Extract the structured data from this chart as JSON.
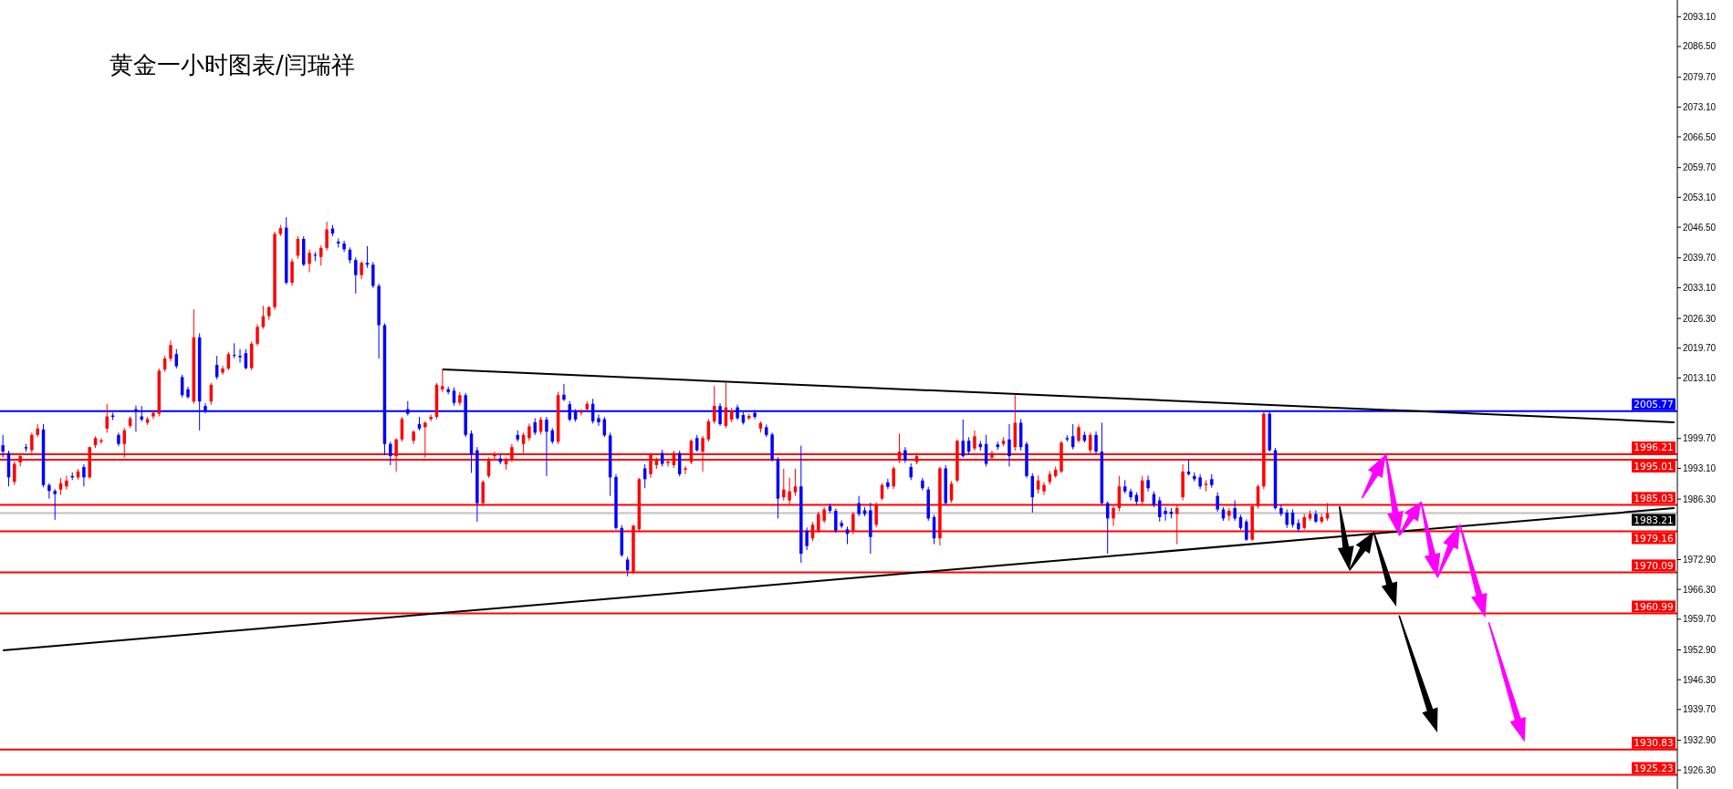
{
  "chart_data": {
    "type": "candlestick",
    "title": "黄金一小时图表/闫瑞祥",
    "categories": [
      null,
      null,
      null,
      null,
      null,
      null,
      null,
      null,
      null,
      null,
      null,
      null,
      null,
      null,
      null,
      null,
      null,
      null,
      null,
      null,
      null,
      null,
      null,
      null,
      null,
      null,
      null,
      null,
      null,
      null,
      null,
      null,
      null,
      null,
      null,
      null,
      null,
      null,
      null,
      null,
      null,
      null,
      null,
      null,
      null,
      null,
      null,
      null,
      null,
      null,
      null,
      null,
      null,
      null,
      null,
      null,
      null,
      null,
      null,
      null,
      null,
      null,
      null,
      null,
      null,
      null,
      null,
      null,
      null,
      null,
      null,
      null,
      null,
      null,
      null,
      null,
      null,
      null,
      null,
      null,
      null,
      null,
      null,
      null,
      null,
      null,
      null,
      null,
      null,
      null,
      null,
      null,
      null,
      null,
      null,
      null,
      null,
      null,
      null,
      null,
      null,
      null,
      null,
      null,
      null,
      null,
      null,
      null,
      null,
      null,
      null,
      null,
      null,
      null,
      null,
      null,
      null,
      null,
      null,
      null,
      null,
      null,
      null,
      null,
      null,
      null,
      null,
      null,
      null,
      null,
      null,
      null,
      null,
      null,
      null,
      null,
      null,
      null,
      null,
      null,
      null,
      null,
      null,
      null,
      null,
      null,
      null,
      null,
      null,
      null,
      null,
      null,
      null,
      null,
      null,
      null,
      null,
      null,
      null,
      null,
      null,
      null,
      null,
      null,
      null,
      null,
      null,
      null,
      null,
      null,
      null,
      null,
      null,
      null,
      null,
      null,
      null,
      null,
      null,
      null,
      null,
      null,
      null,
      null,
      null,
      null,
      null,
      null,
      null,
      null,
      null,
      null,
      null,
      null,
      null,
      null,
      null,
      null,
      null,
      null,
      null,
      null,
      null,
      null,
      null,
      null,
      null,
      null,
      null,
      null,
      null,
      null,
      null,
      null,
      null,
      null,
      null,
      null,
      null,
      null,
      null,
      null,
      null,
      null,
      null,
      null,
      null,
      null,
      null,
      null,
      null,
      null,
      null,
      null,
      null,
      null,
      null,
      null,
      null,
      null,
      null,
      null,
      null,
      null,
      null,
      null,
      null,
      null,
      null,
      null,
      null,
      null,
      null,
      null,
      null,
      null,
      null,
      null,
      null,
      null,
      null,
      null,
      null,
      null,
      null,
      null,
      null,
      null,
      null,
      null,
      null,
      null,
      null,
      null,
      null,
      null,
      null,
      null,
      null,
      null,
      null,
      null,
      null,
      null,
      null,
      null,
      null,
      null,
      null,
      null
    ],
    "ohlc": [
      [
        1998.2,
        2000.5,
        1995.5,
        1996.8
      ],
      [
        1996.5,
        1997.0,
        1989.1,
        1991.1
      ],
      [
        1990.1,
        1994.6,
        1989.4,
        1994.1
      ],
      [
        1994.4,
        1996.0,
        1993.5,
        1995.8
      ],
      [
        1997.8,
        1998.5,
        1996.8,
        1997.5
      ],
      [
        1997.1,
        2001.0,
        1996.5,
        2000.5
      ],
      [
        2000.5,
        2002.9,
        2000.0,
        2001.9
      ],
      [
        2001.7,
        2002.9,
        1988.9,
        1989.4
      ],
      [
        1989.4,
        1989.8,
        1986.4,
        1988.1
      ],
      [
        1988.1,
        1988.5,
        1981.7,
        1987.4
      ],
      [
        1988.4,
        1991.0,
        1987.2,
        1989.8
      ],
      [
        1989.1,
        1991.5,
        1988.4,
        1990.4
      ],
      [
        1991.4,
        1992.2,
        1990.5,
        1991.1
      ],
      [
        1991.1,
        1993.0,
        1990.6,
        1992.4
      ],
      [
        1993.4,
        1994.0,
        1989.1,
        1991.1
      ],
      [
        1991.1,
        1997.9,
        1990.8,
        1997.8
      ],
      [
        1998.2,
        2000.2,
        1997.6,
        1999.8
      ],
      [
        1999.0,
        1999.8,
        1998.5,
        1999.3
      ],
      [
        2001.9,
        2007.4,
        2001.0,
        2004.6
      ],
      [
        2004.8,
        2005.4,
        2003.8,
        2004.5
      ],
      [
        2000.5,
        2001.0,
        1998.0,
        1998.5
      ],
      [
        1998.5,
        2002.0,
        1995.5,
        2001.5
      ],
      [
        2002.5,
        2004.6,
        2002.0,
        2004.2
      ],
      [
        2006.2,
        2007.0,
        2001.2,
        2005.9
      ],
      [
        2004.6,
        2006.9,
        2003.5,
        2003.9
      ],
      [
        2003.2,
        2004.5,
        2002.7,
        2004.0
      ],
      [
        2004.6,
        2005.8,
        2004.0,
        2005.4
      ],
      [
        2005.2,
        2015.2,
        2004.6,
        2014.7
      ],
      [
        2015.0,
        2018.0,
        2014.5,
        2017.4
      ],
      [
        2017.4,
        2021.4,
        2016.8,
        2020.4
      ],
      [
        2018.4,
        2019.5,
        2015.2,
        2015.7
      ],
      [
        2013.3,
        2013.8,
        2008.8,
        2009.3
      ],
      [
        2010.6,
        2011.2,
        2008.5,
        2008.9
      ],
      [
        2007.9,
        2028.3,
        2007.4,
        2022.1
      ],
      [
        2022.1,
        2023.0,
        2001.5,
        2007.9
      ],
      [
        2006.9,
        2007.5,
        2005.3,
        2005.9
      ],
      [
        2007.9,
        2012.0,
        2007.2,
        2011.6
      ],
      [
        2016.0,
        2018.0,
        2012.8,
        2013.3
      ],
      [
        2014.3,
        2015.8,
        2013.8,
        2015.2
      ],
      [
        2015.2,
        2018.9,
        2014.8,
        2018.4
      ],
      [
        2018.2,
        2020.8,
        2017.5,
        2018.0
      ],
      [
        2018.0,
        2019.5,
        2016.5,
        2017.7
      ],
      [
        2018.6,
        2019.5,
        2015.0,
        2015.3
      ],
      [
        2015.3,
        2021.2,
        2014.8,
        2020.7
      ],
      [
        2020.7,
        2025.0,
        2020.2,
        2024.4
      ],
      [
        2024.4,
        2029.1,
        2024.0,
        2026.8
      ],
      [
        2026.8,
        2029.0,
        2026.0,
        2028.8
      ],
      [
        2028.8,
        2045.5,
        2028.2,
        2045.0
      ],
      [
        2045.0,
        2047.0,
        2044.5,
        2046.3
      ],
      [
        2046.4,
        2048.7,
        2033.8,
        2034.2
      ],
      [
        2034.2,
        2039.5,
        2033.5,
        2038.9
      ],
      [
        2040.2,
        2044.5,
        2039.5,
        2043.9
      ],
      [
        2043.9,
        2044.5,
        2037.9,
        2038.2
      ],
      [
        2038.4,
        2041.5,
        2036.5,
        2040.8
      ],
      [
        2040.4,
        2041.0,
        2039.0,
        2040.2
      ],
      [
        2039.9,
        2042.5,
        2038.0,
        2041.9
      ],
      [
        2041.9,
        2047.7,
        2041.3,
        2046.0
      ],
      [
        2046.2,
        2047.0,
        2044.5,
        2045.1
      ],
      [
        2043.3,
        2044.0,
        2042.0,
        2042.9
      ],
      [
        2042.9,
        2043.5,
        2041.0,
        2041.6
      ],
      [
        2041.5,
        2042.0,
        2038.5,
        2039.2
      ],
      [
        2039.2,
        2039.8,
        2031.8,
        2035.9
      ],
      [
        2035.9,
        2039.0,
        2035.0,
        2038.6
      ],
      [
        2038.6,
        2042.3,
        2037.5,
        2038.2
      ],
      [
        2038.2,
        2038.8,
        2033.0,
        2033.5
      ],
      [
        2033.5,
        2034.0,
        2017.4,
        2024.8
      ],
      [
        2024.8,
        2025.2,
        1996.0,
        1998.5
      ],
      [
        1998.5,
        1999.0,
        1993.8,
        1995.8
      ],
      [
        1995.8,
        1999.8,
        1992.4,
        1999.5
      ],
      [
        1999.5,
        2004.5,
        1999.0,
        2004.0
      ],
      [
        2006.2,
        2008.0,
        2004.8,
        2005.2
      ],
      [
        1999.2,
        2001.5,
        1998.5,
        2001.2
      ],
      [
        2002.9,
        2004.5,
        2001.5,
        2001.9
      ],
      [
        2002.2,
        2003.5,
        1995.5,
        2003.2
      ],
      [
        2004.0,
        2005.0,
        2003.5,
        2004.5
      ],
      [
        2004.5,
        2012.0,
        2004.0,
        2011.6
      ],
      [
        2010.6,
        2015.0,
        2010.0,
        2011.3
      ],
      [
        2010.6,
        2011.2,
        2009.5,
        2010.0
      ],
      [
        2010.3,
        2011.0,
        2007.0,
        2007.6
      ],
      [
        2007.6,
        2010.0,
        2007.0,
        2009.3
      ],
      [
        2009.3,
        2009.8,
        2000.0,
        2000.5
      ],
      [
        2000.8,
        2001.5,
        1992.1,
        1996.1
      ],
      [
        1997.1,
        1997.8,
        1981.3,
        1985.4
      ],
      [
        1985.4,
        1990.5,
        1984.8,
        1990.1
      ],
      [
        1991.4,
        1995.5,
        1991.0,
        1995.1
      ],
      [
        1995.8,
        1996.8,
        1995.0,
        1996.3
      ],
      [
        1995.3,
        1996.2,
        1994.0,
        1994.5
      ],
      [
        1994.0,
        1995.5,
        1992.8,
        1995.1
      ],
      [
        1995.1,
        1998.5,
        1994.5,
        1997.8
      ],
      [
        2000.5,
        2001.5,
        1999.0,
        1999.5
      ],
      [
        1998.5,
        2001.0,
        1996.5,
        2000.5
      ],
      [
        1999.8,
        2003.0,
        1999.2,
        2002.4
      ],
      [
        2003.3,
        2004.2,
        2000.5,
        2001.0
      ],
      [
        2001.2,
        2004.5,
        2000.6,
        2003.9
      ],
      [
        2003.9,
        2004.5,
        1991.4,
        2001.2
      ],
      [
        2001.5,
        2002.0,
        1998.5,
        1999.0
      ],
      [
        1999.0,
        2010.0,
        1998.5,
        2009.3
      ],
      [
        2009.4,
        2011.8,
        2008.0,
        2008.3
      ],
      [
        2007.3,
        2008.0,
        2003.5,
        2003.9
      ],
      [
        2005.6,
        2006.2,
        2003.4,
        2003.9
      ],
      [
        2005.4,
        2006.2,
        2004.8,
        2005.8
      ],
      [
        2006.2,
        2008.0,
        2005.8,
        2007.4
      ],
      [
        2007.4,
        2008.5,
        2003.0,
        2003.5
      ],
      [
        2004.2,
        2005.0,
        2002.5,
        2003.3
      ],
      [
        2004.0,
        2004.5,
        2000.0,
        2000.4
      ],
      [
        2000.4,
        2001.0,
        1987.0,
        1991.1
      ],
      [
        1991.2,
        1991.8,
        1979.5,
        1979.9
      ],
      [
        1979.9,
        1980.5,
        1973.5,
        1973.9
      ],
      [
        1972.9,
        1973.5,
        1969.2,
        1970.5
      ],
      [
        1970.2,
        1980.6,
        1969.7,
        1980.4
      ],
      [
        1979.6,
        1991.0,
        1979.0,
        1990.7
      ],
      [
        1993.1,
        1994.0,
        1988.7,
        1990.7
      ],
      [
        1991.8,
        1996.5,
        1991.0,
        1996.1
      ],
      [
        1993.8,
        1995.5,
        1993.0,
        1995.1
      ],
      [
        1996.5,
        1997.2,
        1993.5,
        1994.1
      ],
      [
        1994.3,
        1995.2,
        1993.5,
        1994.6
      ],
      [
        1993.8,
        1997.0,
        1993.2,
        1996.5
      ],
      [
        1996.5,
        1997.0,
        1991.3,
        1991.8
      ],
      [
        1992.8,
        1993.6,
        1991.8,
        1993.1
      ],
      [
        1994.5,
        1999.5,
        1994.0,
        1999.2
      ],
      [
        1999.8,
        2000.5,
        1996.8,
        1997.1
      ],
      [
        1996.8,
        2000.3,
        1992.4,
        1999.8
      ],
      [
        1999.5,
        2004.0,
        1999.0,
        2003.5
      ],
      [
        2003.5,
        2011.3,
        2003.0,
        2006.9
      ],
      [
        2006.9,
        2007.5,
        2002.5,
        2002.9
      ],
      [
        2002.5,
        2012.0,
        2002.0,
        2006.6
      ],
      [
        2003.9,
        2006.5,
        2003.3,
        2005.9
      ],
      [
        2006.6,
        2007.2,
        2003.8,
        2004.2
      ],
      [
        2004.9,
        2005.5,
        2002.8,
        2003.2
      ],
      [
        2004.2,
        2005.2,
        2003.8,
        2004.7
      ],
      [
        2005.4,
        2006.0,
        2004.0,
        2004.5
      ],
      [
        2001.9,
        2003.5,
        2001.0,
        2003.1
      ],
      [
        2002.2,
        2002.8,
        2000.0,
        2000.5
      ],
      [
        2000.6,
        2001.0,
        1994.6,
        1995.1
      ],
      [
        1995.1,
        1995.6,
        1982.0,
        1986.4
      ],
      [
        1986.7,
        1993.0,
        1986.0,
        1988.4
      ],
      [
        1986.0,
        1991.0,
        1985.0,
        1988.0
      ],
      [
        1987.8,
        1993.0,
        1987.0,
        1989.1
      ],
      [
        1989.1,
        1998.1,
        1972.2,
        1974.2
      ],
      [
        1979.3,
        1980.0,
        1975.0,
        1975.9
      ],
      [
        1977.6,
        1981.2,
        1977.0,
        1980.6
      ],
      [
        1979.3,
        1983.5,
        1978.8,
        1983.0
      ],
      [
        1981.5,
        1984.5,
        1981.0,
        1984.0
      ],
      [
        1984.7,
        1985.3,
        1983.2,
        1983.7
      ],
      [
        1983.7,
        1984.2,
        1978.8,
        1979.3
      ],
      [
        1981.0,
        1981.6,
        1979.8,
        1980.3
      ],
      [
        1979.6,
        1980.2,
        1976.3,
        1978.6
      ],
      [
        1979.3,
        1983.5,
        1978.5,
        1983.0
      ],
      [
        1985.4,
        1987.0,
        1982.5,
        1983.0
      ],
      [
        1983.8,
        1984.5,
        1982.5,
        1983.0
      ],
      [
        1983.8,
        1985.5,
        1974.2,
        1977.9
      ],
      [
        1980.6,
        1985.5,
        1980.0,
        1985.0
      ],
      [
        1986.4,
        1989.8,
        1986.0,
        1989.4
      ],
      [
        1990.0,
        1990.8,
        1988.5,
        1989.0
      ],
      [
        1989.1,
        1993.5,
        1988.5,
        1993.1
      ],
      [
        1994.8,
        2000.8,
        1994.3,
        1996.8
      ],
      [
        1997.1,
        1997.8,
        1994.3,
        1994.8
      ],
      [
        1993.4,
        1994.2,
        1990.5,
        1991.1
      ],
      [
        1994.5,
        1996.5,
        1994.0,
        1995.8
      ],
      [
        1990.4,
        1991.0,
        1988.2,
        1988.7
      ],
      [
        1988.4,
        1989.0,
        1981.5,
        1982.0
      ],
      [
        1982.3,
        1982.8,
        1976.3,
        1977.6
      ],
      [
        1977.6,
        1993.5,
        1976.0,
        1993.1
      ],
      [
        1993.1,
        1993.8,
        1985.0,
        1985.4
      ],
      [
        1986.0,
        1990.3,
        1985.5,
        1989.7
      ],
      [
        1990.4,
        1999.5,
        1990.0,
        1999.2
      ],
      [
        1999.2,
        2003.9,
        1995.5,
        1995.8
      ],
      [
        1999.2,
        2000.0,
        1996.2,
        1996.8
      ],
      [
        1997.5,
        2001.5,
        1997.0,
        2000.2
      ],
      [
        1998.5,
        1999.2,
        1997.0,
        1997.8
      ],
      [
        1998.5,
        2000.5,
        1993.5,
        1994.1
      ],
      [
        1995.5,
        1997.0,
        1995.0,
        1996.5
      ],
      [
        1998.4,
        1999.0,
        1997.2,
        1997.8
      ],
      [
        1998.5,
        2000.0,
        1998.0,
        1999.2
      ],
      [
        1999.5,
        2002.9,
        1993.5,
        1995.8
      ],
      [
        1997.8,
        2009.3,
        1997.0,
        2003.2
      ],
      [
        2003.2,
        2004.0,
        1997.0,
        1997.8
      ],
      [
        1998.5,
        1999.0,
        1991.0,
        1991.4
      ],
      [
        1991.4,
        1992.0,
        1983.3,
        1986.7
      ],
      [
        1988.4,
        1991.5,
        1987.5,
        1990.4
      ],
      [
        1988.0,
        1990.0,
        1987.2,
        1989.4
      ],
      [
        1990.1,
        1992.5,
        1989.5,
        1991.8
      ],
      [
        1991.4,
        1993.5,
        1991.0,
        1992.8
      ],
      [
        1992.4,
        1999.2,
        1992.0,
        1998.8
      ],
      [
        1999.8,
        2000.4,
        1999.0,
        1999.5
      ],
      [
        2000.2,
        2002.9,
        1997.3,
        1997.8
      ],
      [
        1999.2,
        2002.8,
        1998.8,
        2002.2
      ],
      [
        2000.5,
        2001.2,
        1998.8,
        1999.2
      ],
      [
        1997.1,
        2001.0,
        1996.5,
        2000.5
      ],
      [
        2000.5,
        2001.3,
        1996.3,
        1996.8
      ],
      [
        1996.8,
        2003.2,
        1985.0,
        1985.4
      ],
      [
        1985.4,
        1985.8,
        1974.2,
        1982.0
      ],
      [
        1982.0,
        1984.8,
        1980.3,
        1984.3
      ],
      [
        1984.3,
        1991.4,
        1983.6,
        1989.1
      ],
      [
        1989.1,
        1990.5,
        1987.5,
        1988.0
      ],
      [
        1988.0,
        1988.6,
        1986.0,
        1986.7
      ],
      [
        1987.2,
        1987.8,
        1985.0,
        1985.7
      ],
      [
        1985.7,
        1991.4,
        1985.0,
        1990.4
      ],
      [
        1990.5,
        1991.5,
        1988.0,
        1988.7
      ],
      [
        1987.4,
        1988.0,
        1984.5,
        1985.0
      ],
      [
        1986.0,
        1986.8,
        1981.3,
        1982.3
      ],
      [
        1983.7,
        1984.5,
        1981.5,
        1983.0
      ],
      [
        1983.5,
        1984.3,
        1982.0,
        1983.0
      ],
      [
        1983.0,
        1985.0,
        1976.3,
        1984.3
      ],
      [
        1986.7,
        1994.0,
        1986.0,
        1992.4
      ],
      [
        1992.4,
        1995.0,
        1991.5,
        1991.8
      ],
      [
        1991.4,
        1992.2,
        1990.2,
        1990.7
      ],
      [
        1991.1,
        1991.8,
        1988.5,
        1989.1
      ],
      [
        1989.4,
        1990.5,
        1988.0,
        1989.7
      ],
      [
        1990.7,
        1991.8,
        1988.8,
        1989.4
      ],
      [
        1987.0,
        1987.8,
        1983.5,
        1984.0
      ],
      [
        1984.0,
        1984.5,
        1981.5,
        1982.0
      ],
      [
        1982.6,
        1984.3,
        1981.5,
        1983.7
      ],
      [
        1984.3,
        1986.0,
        1981.5,
        1982.0
      ],
      [
        1982.3,
        1982.8,
        1979.5,
        1979.9
      ],
      [
        1981.3,
        1981.8,
        1977.0,
        1977.3
      ],
      [
        1977.3,
        1985.0,
        1977.0,
        1984.7
      ],
      [
        1984.7,
        1989.5,
        1984.2,
        1989.1
      ],
      [
        1989.1,
        2005.6,
        1988.5,
        2005.2
      ],
      [
        2005.2,
        2005.9,
        1996.8,
        1997.1
      ],
      [
        1997.1,
        1997.6,
        1984.0,
        1984.3
      ],
      [
        1984.3,
        1985.0,
        1982.5,
        1983.0
      ],
      [
        1983.3,
        1984.0,
        1979.9,
        1980.6
      ],
      [
        1983.3,
        1984.0,
        1980.0,
        1980.6
      ],
      [
        1981.0,
        1981.8,
        1979.0,
        1979.6
      ],
      [
        1979.9,
        1983.0,
        1979.5,
        1982.3
      ],
      [
        1982.0,
        1983.8,
        1981.5,
        1983.0
      ],
      [
        1983.0,
        1983.8,
        1981.0,
        1981.3
      ],
      [
        1981.3,
        1983.0,
        1980.8,
        1982.3
      ],
      [
        1982.0,
        1985.4,
        1981.5,
        1983.2
      ],
      null,
      null,
      null,
      null,
      null,
      null,
      null,
      null,
      null,
      null,
      null,
      null,
      null,
      null,
      null,
      null,
      null,
      null,
      null,
      null,
      null,
      null,
      null,
      null,
      null,
      null,
      null,
      null,
      null,
      null,
      null,
      null,
      null,
      null,
      null,
      null,
      null,
      null,
      null,
      null,
      null,
      null,
      null,
      null,
      null,
      null,
      null,
      null,
      null,
      null,
      null,
      null,
      null,
      null,
      null,
      null,
      null,
      null,
      null,
      null
    ],
    "series": [
      {
        "type": "line",
        "color": "#000000",
        "values": [
          1952.8,
          null,
          null,
          null,
          null,
          null,
          null,
          null,
          null,
          null,
          null,
          null,
          null,
          null,
          null,
          null,
          null,
          null,
          null,
          null,
          null,
          null,
          null,
          null,
          null,
          null,
          null,
          null,
          null,
          null,
          null,
          null,
          null,
          null,
          null,
          null,
          null,
          null,
          null,
          null,
          null,
          null,
          null,
          null,
          null,
          null,
          null,
          null,
          null,
          null,
          null,
          null,
          null,
          null,
          null,
          null,
          null,
          null,
          null,
          null,
          null,
          null,
          null,
          null,
          null,
          null,
          null,
          null,
          null,
          null,
          null,
          null,
          null,
          null,
          null,
          null,
          null,
          null,
          null,
          null,
          null,
          null,
          null,
          null,
          null,
          null,
          null,
          null,
          null,
          null,
          null,
          null,
          null,
          null,
          null,
          null,
          null,
          null,
          null,
          null,
          null,
          null,
          null,
          null,
          null,
          null,
          null,
          null,
          null,
          null,
          null,
          null,
          null,
          null,
          null,
          null,
          null,
          null,
          null,
          null,
          null,
          null,
          null,
          null,
          null,
          null,
          null,
          null,
          null,
          null,
          null,
          null,
          null,
          null,
          null,
          null,
          null,
          null,
          null,
          null,
          null,
          null,
          null,
          null,
          null,
          null,
          null,
          null,
          null,
          null,
          null,
          null,
          null,
          null,
          null,
          null,
          null,
          null,
          null,
          null,
          null,
          null,
          null,
          null,
          null,
          null,
          null,
          null,
          null,
          null,
          null,
          null,
          null,
          null,
          null,
          null,
          null,
          null,
          null,
          null,
          null,
          null,
          null,
          null,
          null,
          null,
          null,
          null,
          null,
          null,
          null,
          null,
          null,
          null,
          null,
          null,
          null,
          null,
          null,
          null,
          null,
          null,
          null,
          null,
          null,
          null,
          null,
          null,
          null,
          null,
          null,
          null,
          null,
          null,
          null,
          null,
          null,
          null,
          null,
          null,
          null,
          null,
          null,
          null,
          null,
          null,
          null,
          null,
          null,
          null,
          null,
          null,
          null,
          null,
          null,
          null,
          null,
          null,
          null,
          null,
          null,
          null,
          null,
          null,
          null,
          null,
          null,
          null,
          null,
          null,
          null,
          null,
          null,
          null,
          null,
          null,
          null,
          null,
          null,
          null,
          null,
          null,
          null,
          null,
          null,
          null,
          null,
          null,
          null,
          null,
          null,
          null,
          null,
          null,
          null,
          null,
          null,
          null,
          null,
          null,
          null,
          null,
          null,
          null,
          null,
          null,
          null,
          null,
          null,
          1984.3
        ]
      },
      {
        "type": "line",
        "color": "#000000",
        "values": [
          null,
          null,
          null,
          null,
          null,
          null,
          null,
          null,
          null,
          null,
          null,
          null,
          null,
          null,
          null,
          null,
          null,
          null,
          null,
          null,
          null,
          null,
          null,
          null,
          null,
          null,
          null,
          null,
          null,
          null,
          null,
          null,
          null,
          null,
          null,
          null,
          null,
          null,
          null,
          null,
          null,
          null,
          null,
          null,
          null,
          null,
          null,
          null,
          null,
          null,
          null,
          null,
          null,
          null,
          null,
          null,
          null,
          null,
          null,
          null,
          null,
          null,
          null,
          null,
          null,
          null,
          null,
          null,
          null,
          null,
          null,
          null,
          null,
          null,
          null,
          null,
          2015.0,
          null,
          null,
          null,
          null,
          null,
          null,
          null,
          null,
          null,
          null,
          null,
          null,
          null,
          null,
          null,
          null,
          null,
          null,
          null,
          null,
          null,
          null,
          null,
          null,
          null,
          null,
          null,
          null,
          null,
          null,
          null,
          null,
          null,
          null,
          null,
          null,
          null,
          null,
          null,
          null,
          null,
          null,
          null,
          null,
          null,
          null,
          null,
          null,
          null,
          null,
          null,
          null,
          null,
          null,
          null,
          null,
          null,
          null,
          null,
          null,
          null,
          null,
          null,
          null,
          null,
          null,
          null,
          null,
          null,
          null,
          null,
          null,
          null,
          null,
          null,
          null,
          null,
          null,
          null,
          null,
          null,
          null,
          null,
          null,
          null,
          null,
          null,
          null,
          null,
          null,
          null,
          null,
          null,
          null,
          null,
          null,
          null,
          null,
          null,
          null,
          null,
          null,
          null,
          null,
          null,
          null,
          null,
          null,
          null,
          null,
          null,
          null,
          null,
          null,
          null,
          null,
          null,
          null,
          null,
          null,
          null,
          null,
          null,
          null,
          null,
          null,
          null,
          null,
          null,
          null,
          null,
          null,
          null,
          null,
          null,
          null,
          null,
          null,
          null,
          null,
          null,
          null,
          null,
          null,
          null,
          null,
          null,
          null,
          null,
          null,
          null,
          null,
          null,
          null,
          null,
          null,
          null,
          null,
          null,
          null,
          null,
          null,
          null,
          null,
          null,
          null,
          null,
          null,
          null,
          null,
          null,
          null,
          null,
          null,
          null,
          null,
          null,
          null,
          null,
          null,
          null,
          null,
          null,
          null,
          null,
          null,
          null,
          null,
          null,
          null,
          null,
          null,
          null,
          null,
          null,
          null,
          null,
          null,
          null,
          null,
          null,
          null,
          null,
          null,
          null,
          null,
          null,
          null,
          null,
          null,
          null,
          null,
          2003.3
        ]
      }
    ],
    "ylim": [
      1922.1,
      2096.8
    ],
    "yticks": [
      {
        "value": 2093.1,
        "label": "2093.10"
      },
      {
        "value": 2086.5,
        "label": "2086.50"
      },
      {
        "value": 2079.7,
        "label": "2079.70"
      },
      {
        "value": 2073.1,
        "label": "2073.10"
      },
      {
        "value": 2066.5,
        "label": "2066.50"
      },
      {
        "value": 2059.7,
        "label": "2059.70"
      },
      {
        "value": 2053.1,
        "label": "2053.10"
      },
      {
        "value": 2046.5,
        "label": "2046.50"
      },
      {
        "value": 2039.7,
        "label": "2039.70"
      },
      {
        "value": 2033.1,
        "label": "2033.10"
      },
      {
        "value": 2026.3,
        "label": "2026.30"
      },
      {
        "value": 2019.7,
        "label": "2019.70"
      },
      {
        "value": 2013.1,
        "label": "2013.10"
      },
      {
        "value": 1999.7,
        "label": "1999.70"
      },
      {
        "value": 1993.1,
        "label": "1993.10"
      },
      {
        "value": 1986.3,
        "label": "1986.30"
      },
      {
        "value": 1972.9,
        "label": "1972.90"
      },
      {
        "value": 1966.3,
        "label": "1966.30"
      },
      {
        "value": 1959.7,
        "label": "1959.70"
      },
      {
        "value": 1952.9,
        "label": "1952.90"
      },
      {
        "value": 1946.3,
        "label": "1946.30"
      },
      {
        "value": 1939.7,
        "label": "1939.70"
      },
      {
        "value": 1932.9,
        "label": "1932.90"
      },
      {
        "value": 1926.3,
        "label": "1926.30"
      }
    ],
    "tick_labels": "y",
    "ref_lines": [
      {
        "axis": "y",
        "value": 2005.77,
        "label": "2005.77",
        "color": "#0000ff"
      },
      {
        "axis": "y",
        "value": 1996.21,
        "label": "1996.21",
        "color": "#ff0000"
      },
      {
        "axis": "y",
        "value": 1995.01,
        "label": "1995.01",
        "color": "#ff0000"
      },
      {
        "axis": "y",
        "value": 1985.03,
        "label": "1985.03",
        "color": "#ff0000"
      },
      {
        "axis": "y",
        "value": 1983.21,
        "label": "1983.21",
        "color": "#c0c0c0"
      },
      {
        "axis": "y",
        "value": 1979.16,
        "label": "1979.16",
        "color": "#ff0000"
      },
      {
        "axis": "y",
        "value": 1970.09,
        "label": "1970.09",
        "color": "#ff0000"
      },
      {
        "axis": "y",
        "value": 1960.99,
        "label": "1960.99",
        "color": "#ff0000"
      },
      {
        "axis": "y",
        "value": 1930.83,
        "label": "1930.83",
        "color": "#ff0000"
      },
      {
        "axis": "y",
        "value": 1925.23,
        "label": "1925.23",
        "color": "#ff0000"
      }
    ]
  }
}
